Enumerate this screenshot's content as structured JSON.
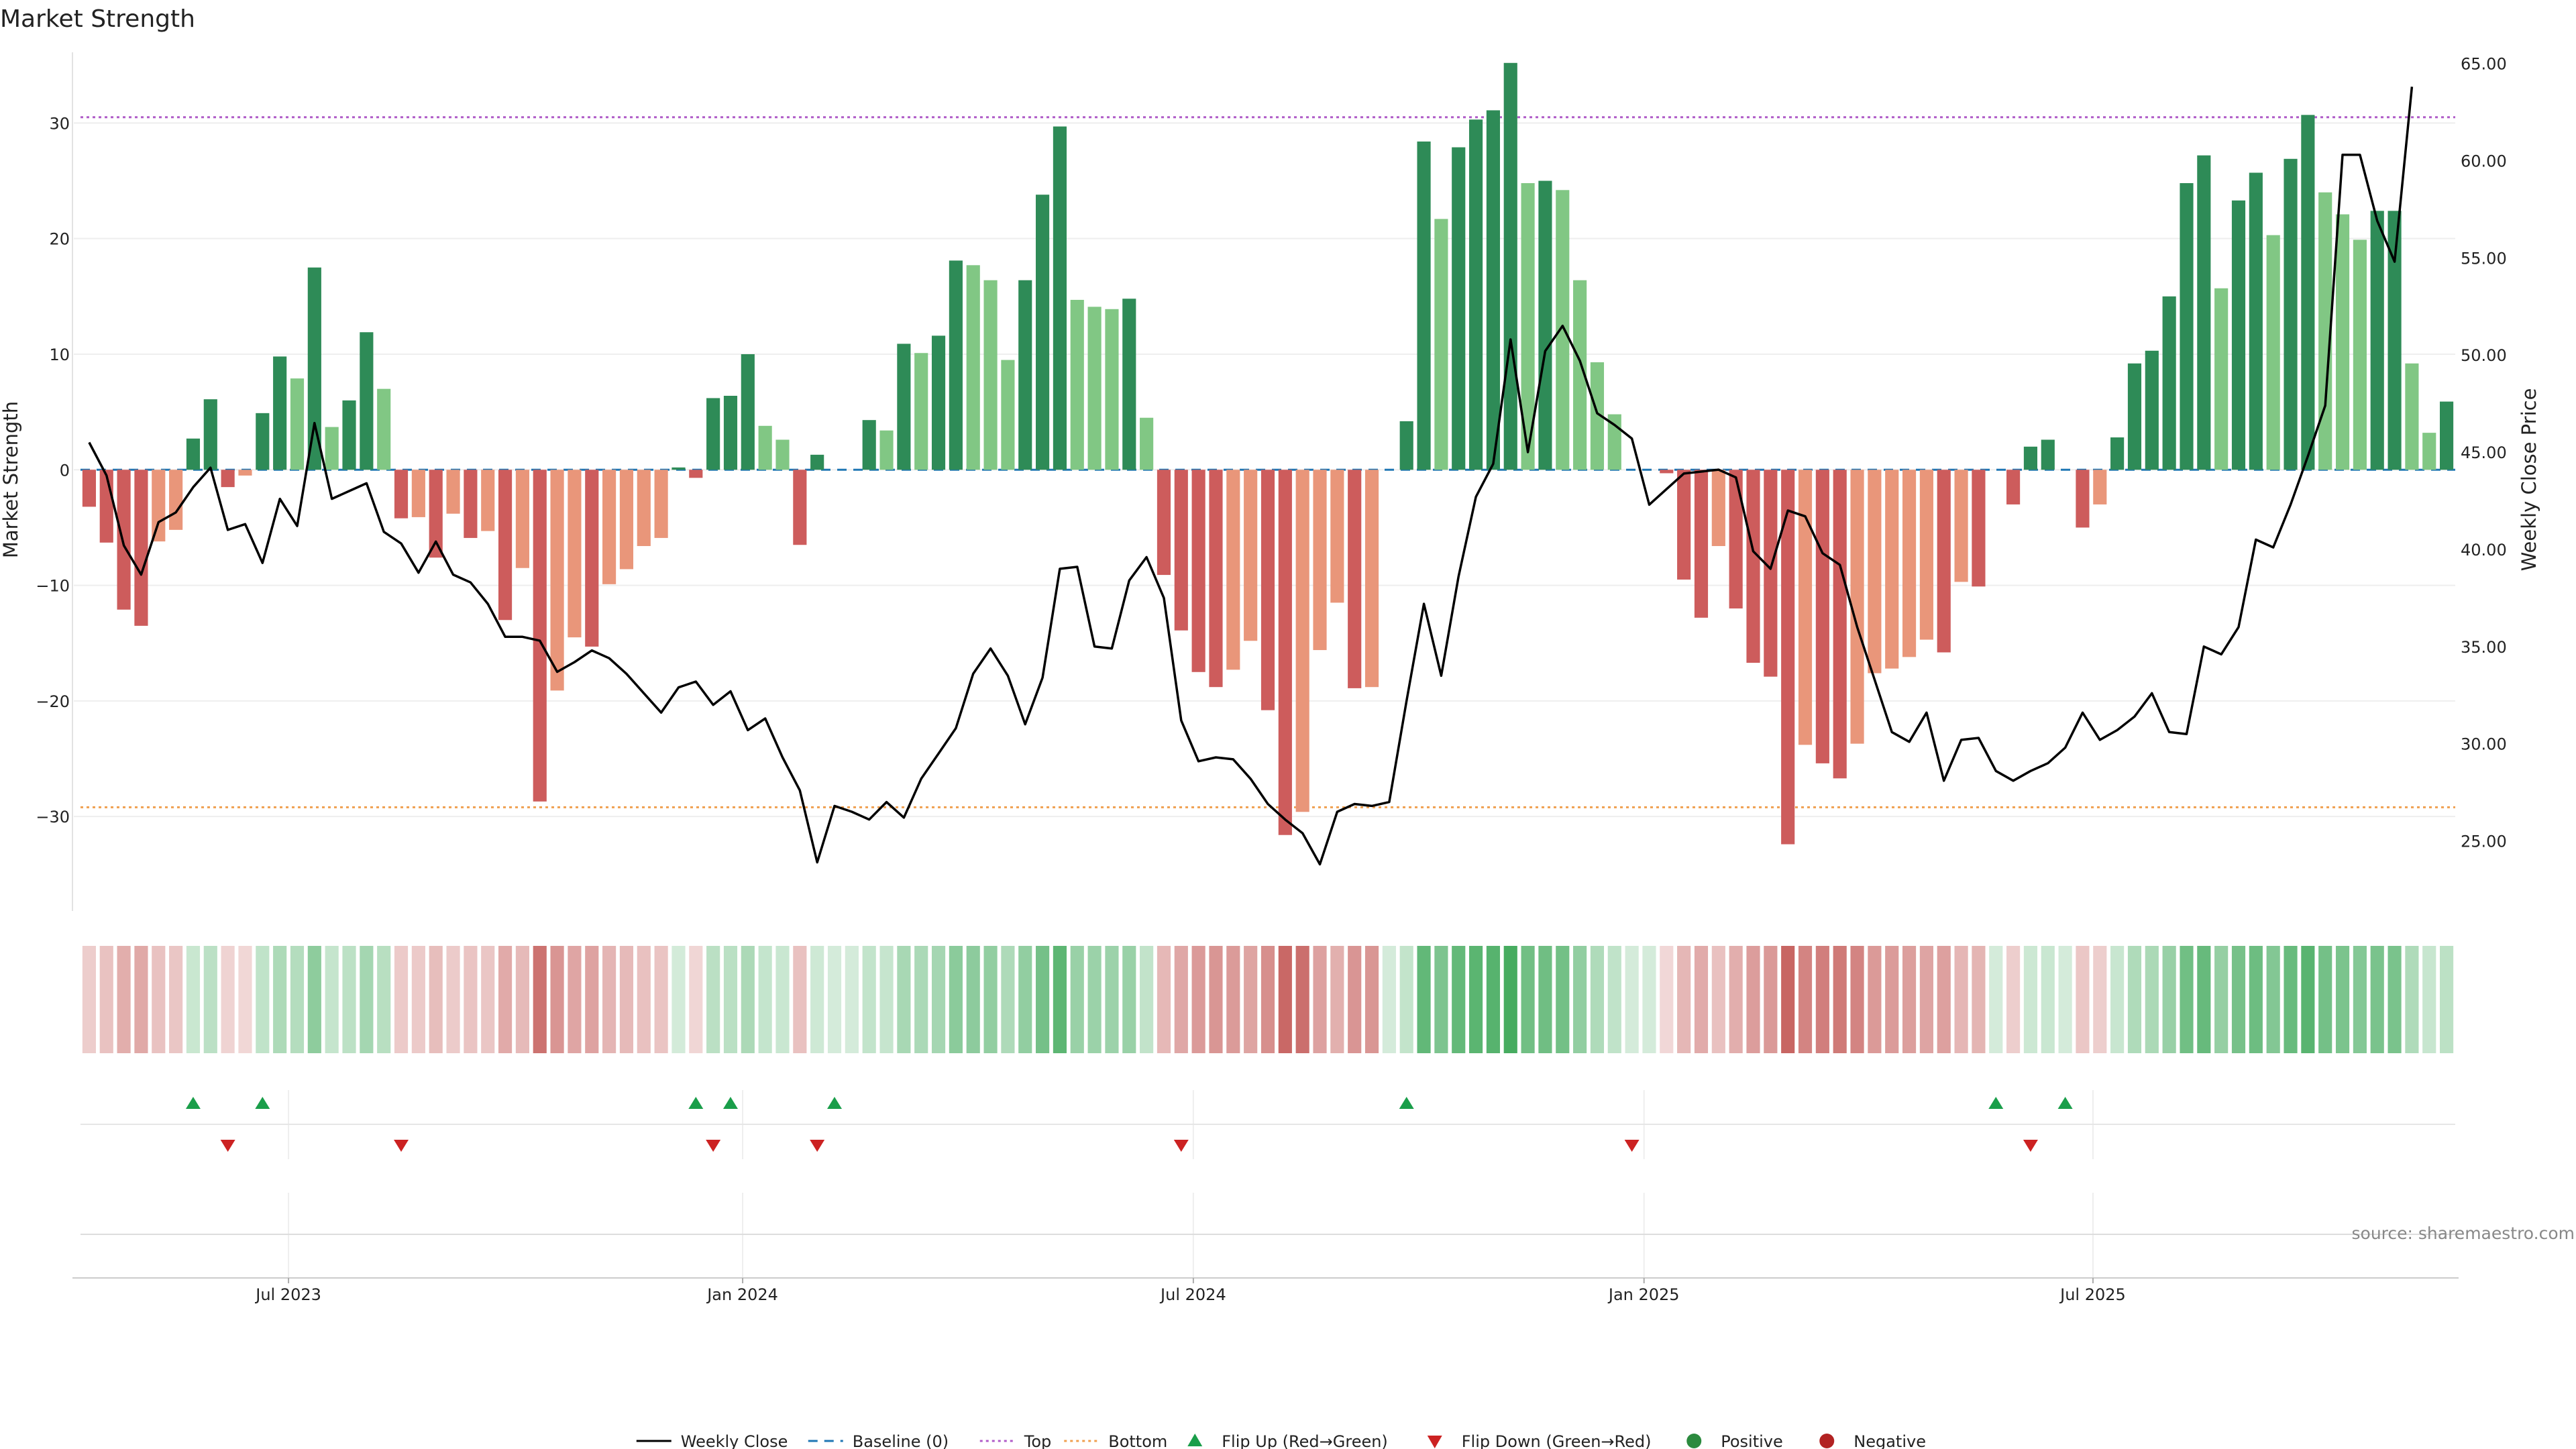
{
  "chart_data": {
    "type": "bar",
    "title": "Market Strength",
    "ylabel_left": "Market Strength",
    "ylabel_right": "Weekly Close Price",
    "source": "source: sharemaestro.com",
    "ylim_left": [
      -38,
      36
    ],
    "ylim_right": [
      21.5,
      65.5
    ],
    "left_ticks": [
      30,
      20,
      10,
      0,
      -10,
      -20,
      -30
    ],
    "right_ticks": [
      65.0,
      60.0,
      55.0,
      50.0,
      45.0,
      40.0,
      35.0,
      30.0,
      25.0
    ],
    "x_ticks": [
      {
        "label": "Jul 2023",
        "week": 12
      },
      {
        "label": "Jan 2024",
        "week": 38.2
      },
      {
        "label": "Jul 2024",
        "week": 64.2
      },
      {
        "label": "Jan 2025",
        "week": 90.2
      },
      {
        "label": "Jul 2025",
        "week": 116.1
      }
    ],
    "top_line": 30.5,
    "bottom_line": -29.2,
    "colors": {
      "strong_pos": "#2e8b57",
      "weak_pos": "#81c784",
      "strong_neg": "#cd5c5c",
      "weak_neg": "#e9967a",
      "close": "#000000",
      "baseline": "#1f77b4",
      "top": "#b05cc8",
      "bottom": "#f0a050",
      "flip_up": "#1a9e4a",
      "flip_down": "#cc2222"
    },
    "series": [
      {
        "name": "Market Strength",
        "values": [
          -3.2,
          -6.3,
          -12.1,
          -13.5,
          -6.2,
          -5.2,
          2.7,
          6.1,
          -1.5,
          -0.5,
          4.9,
          9.8,
          7.9,
          17.5,
          3.7,
          6.0,
          11.9,
          7.0,
          -4.2,
          -4.1,
          -7.6,
          -3.8,
          -5.9,
          -5.3,
          -13.0,
          -8.5,
          -28.7,
          -19.1,
          -14.5,
          -15.3,
          -9.9,
          -8.6,
          -6.6,
          -5.9,
          0.2,
          -0.7,
          6.2,
          6.4,
          10.0,
          3.8,
          2.6,
          -6.5,
          1.3,
          0.0,
          0.0,
          4.3,
          3.4,
          10.9,
          10.1,
          11.6,
          18.1,
          17.7,
          16.4,
          9.5,
          16.4,
          23.8,
          29.7,
          14.7,
          14.1,
          13.9,
          14.8,
          4.5,
          -9.1,
          -13.9,
          -17.5,
          -18.8,
          -17.3,
          -14.8,
          -20.8,
          -31.6,
          -29.6,
          -15.6,
          -11.5,
          -18.9,
          -18.8,
          0.0,
          4.2,
          28.4,
          21.7,
          27.9,
          30.3,
          31.1,
          35.2,
          24.8,
          25.0,
          24.2,
          16.4,
          9.3,
          4.8,
          0.0,
          0.0,
          -0.3,
          -9.5,
          -12.8,
          -6.6,
          -12.0,
          -16.7,
          -17.9,
          -32.4,
          -23.8,
          -25.4,
          -26.7,
          -23.7,
          -17.6,
          -17.2,
          -16.2,
          -14.7,
          -15.8,
          -9.7,
          -10.1,
          0.0,
          -3.0,
          2.0,
          2.6,
          0.0,
          -5.0,
          -3.0,
          2.8,
          9.2,
          10.3,
          15.0,
          24.8,
          27.2,
          15.7,
          23.3,
          25.7,
          20.3,
          26.9,
          30.7,
          24.0,
          22.1,
          19.9,
          22.4,
          22.4,
          9.2,
          3.2,
          5.9
        ]
      },
      {
        "name": "Weekly Close",
        "values": [
          45.5,
          43.8,
          40.2,
          38.7,
          41.4,
          41.9,
          43.2,
          44.2,
          41.0,
          41.3,
          39.3,
          42.6,
          41.2,
          46.5,
          42.6,
          43.0,
          43.4,
          40.9,
          40.3,
          38.8,
          40.4,
          38.7,
          38.3,
          37.2,
          35.5,
          35.5,
          35.3,
          33.7,
          34.2,
          34.8,
          34.4,
          33.6,
          32.6,
          31.6,
          32.9,
          33.2,
          32.0,
          32.7,
          30.7,
          31.3,
          29.3,
          27.6,
          23.9,
          26.8,
          26.5,
          26.1,
          27.0,
          26.2,
          28.2,
          29.5,
          30.8,
          33.6,
          34.9,
          33.5,
          31.0,
          33.4,
          39.0,
          39.1,
          35.0,
          34.9,
          38.4,
          39.6,
          37.5,
          31.2,
          29.1,
          29.3,
          29.2,
          28.2,
          26.9,
          26.1,
          25.4,
          23.8,
          26.5,
          26.9,
          26.8,
          27.0,
          32.2,
          37.2,
          33.5,
          38.6,
          42.7,
          44.4,
          50.8,
          45.0,
          50.2,
          51.5,
          49.7,
          47.0,
          46.4,
          45.7,
          42.3,
          43.1,
          43.9,
          44.0,
          44.1,
          43.7,
          39.9,
          39.0,
          42.0,
          41.7,
          39.8,
          39.2,
          36.0,
          33.3,
          30.6,
          30.1,
          31.6,
          28.1,
          30.2,
          30.3,
          28.6,
          28.1,
          28.6,
          29.0,
          29.8,
          31.6,
          30.2,
          30.7,
          31.4,
          32.6,
          30.6,
          30.5,
          35.0,
          34.6,
          36.0,
          40.5,
          40.1,
          42.3,
          44.8,
          47.4,
          60.3,
          60.3,
          56.9,
          54.8,
          63.8
        ]
      }
    ],
    "flip_up_weeks": [
      6,
      10,
      35,
      37,
      43,
      76,
      110,
      114
    ],
    "flip_down_weeks": [
      8,
      18,
      36,
      42,
      63,
      89,
      112
    ],
    "legend": [
      {
        "key": "close",
        "label": "Weekly Close"
      },
      {
        "key": "baseline",
        "label": "Baseline (0)"
      },
      {
        "key": "top",
        "label": "Top"
      },
      {
        "key": "bottom",
        "label": "Bottom"
      },
      {
        "key": "flip_up",
        "label": "Flip Up (Red→Green)"
      },
      {
        "key": "flip_down",
        "label": "Flip Down (Green→Red)"
      },
      {
        "key": "positive",
        "label": "Positive"
      },
      {
        "key": "negative",
        "label": "Negative"
      }
    ]
  }
}
